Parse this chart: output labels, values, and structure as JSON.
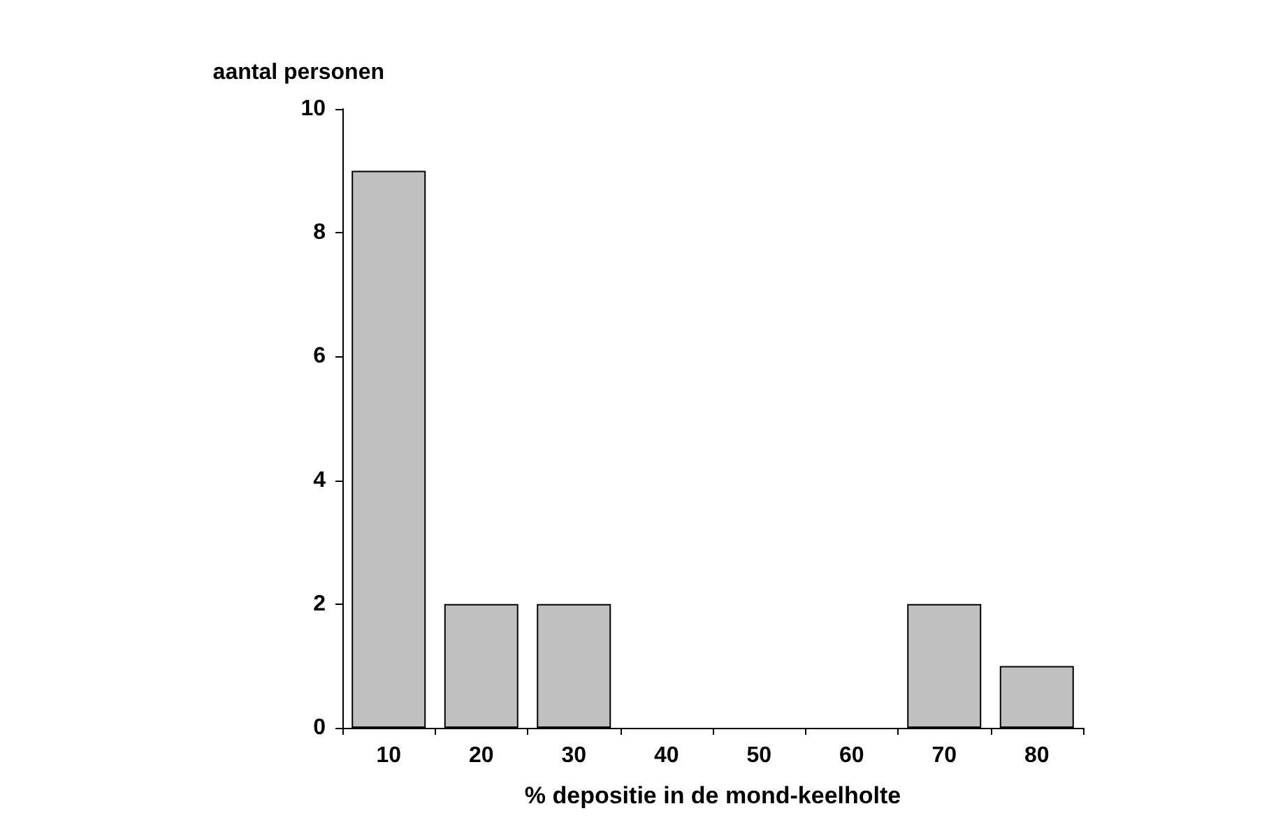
{
  "chart_data": {
    "type": "bar",
    "xlabel": "% depositie in de mond-keelholte",
    "ylabel": "aantal personen",
    "categories": [
      "10",
      "20",
      "30",
      "40",
      "50",
      "60",
      "70",
      "80"
    ],
    "values": [
      9,
      2,
      2,
      0,
      0,
      0,
      2,
      1
    ],
    "color": "#c0c0c0",
    "ylim": [
      0,
      10
    ],
    "yticks": [
      0,
      2,
      4,
      6,
      8,
      10
    ],
    "grid": false
  }
}
